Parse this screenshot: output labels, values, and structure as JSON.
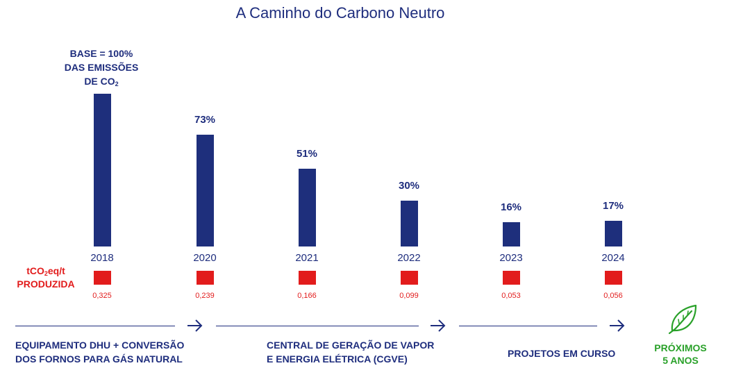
{
  "title": "A Caminho do Carbono Neutro",
  "base_label": {
    "line1": "BASE = 100%",
    "line2": "DAS EMISSÕES",
    "line3_prefix": "DE CO",
    "line3_sub": "2"
  },
  "metric_label": {
    "prefix": "tCO",
    "sub": "2",
    "suffix": "eq/t",
    "line2": "PRODUZIDA"
  },
  "chart_data": {
    "type": "bar",
    "title": "A Caminho do Carbono Neutro",
    "categories": [
      "2018",
      "2020",
      "2021",
      "2022",
      "2023",
      "2024"
    ],
    "series": [
      {
        "name": "% das emissões de CO2 (base 2018 = 100%)",
        "values": [
          100,
          73,
          51,
          30,
          16,
          17
        ],
        "color": "#1e2f7c"
      },
      {
        "name": "tCO2eq/t produzida",
        "values": [
          0.325,
          0.239,
          0.166,
          0.099,
          0.053,
          0.056
        ],
        "color": "#e21c1c"
      }
    ],
    "bar_labels": [
      "",
      "73%",
      "51%",
      "30%",
      "16%",
      "17%"
    ],
    "intensity_labels": [
      "0,325",
      "0,239",
      "0,166",
      "0,099",
      "0,053",
      "0,056"
    ],
    "ylim": [
      0,
      100
    ],
    "xlabel": "",
    "ylabel": ""
  },
  "timeline": {
    "phases": [
      {
        "line1": "EQUIPAMENTO DHU + CONVERSÃO",
        "line2": "DOS FORNOS PARA GÁS NATURAL"
      },
      {
        "line1": "CENTRAL DE GERAÇÃO DE VAPOR",
        "line2": "E ENERGIA ELÉTRICA (CGVE)"
      },
      {
        "line1": "PROJETOS EM CURSO",
        "line2": ""
      }
    ],
    "next": {
      "line1": "PRÓXIMOS",
      "line2": "5 ANOS"
    },
    "leaf_color": "#2aa12a"
  }
}
